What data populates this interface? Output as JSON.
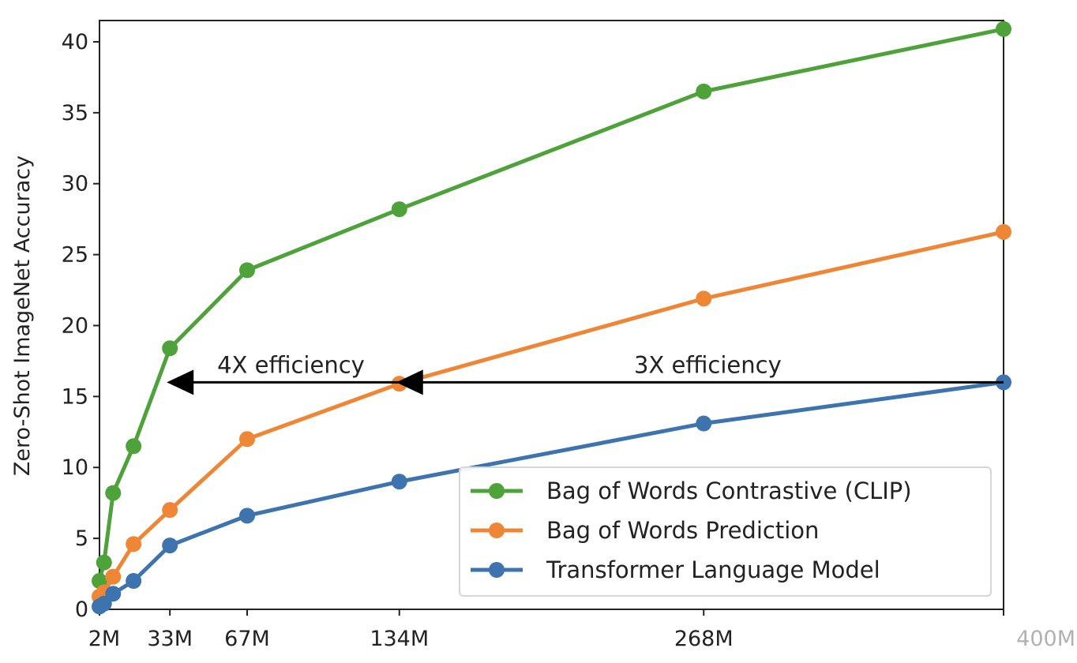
{
  "chart_data": {
    "type": "line",
    "title": "",
    "xlabel": "",
    "ylabel": "Zero-Shot ImageNet Accuracy",
    "ylim": [
      0,
      41.5
    ],
    "xlim": [
      2,
      400
    ],
    "grid": false,
    "legend_position": "lower-right",
    "x_ticks": [
      {
        "value": 2,
        "label": "2M"
      },
      {
        "value": 33,
        "label": "33M"
      },
      {
        "value": 67,
        "label": "67M"
      },
      {
        "value": 134,
        "label": "134M"
      },
      {
        "value": 268,
        "label": "268M"
      },
      {
        "value": 400,
        "label": "400M"
      }
    ],
    "y_ticks": [
      0,
      5,
      10,
      15,
      20,
      25,
      30,
      35,
      40
    ],
    "series": [
      {
        "name": "Bag of Words Contrastive (CLIP)",
        "color": "#4da23a",
        "x": [
          2,
          4,
          8,
          17,
          33,
          67,
          134,
          268,
          400
        ],
        "y": [
          2.0,
          3.3,
          8.2,
          11.5,
          18.4,
          23.9,
          28.2,
          36.5,
          40.9
        ]
      },
      {
        "name": "Bag of Words Prediction",
        "color": "#ef8636",
        "x": [
          2,
          4,
          8,
          17,
          33,
          67,
          134,
          268,
          400
        ],
        "y": [
          0.9,
          1.2,
          2.3,
          4.6,
          7.0,
          12.0,
          15.9,
          21.9,
          26.6
        ]
      },
      {
        "name": "Transformer Language Model",
        "color": "#3d73ae",
        "x": [
          2,
          4,
          8,
          17,
          33,
          67,
          134,
          268,
          400
        ],
        "y": [
          0.2,
          0.4,
          1.1,
          2.0,
          4.5,
          6.6,
          9.0,
          13.1,
          16.0
        ]
      }
    ],
    "annotations": [
      {
        "text": "4X efficiency",
        "arrow_from_x": 134,
        "arrow_to_x": 33,
        "y": 16.0
      },
      {
        "text": "3X efficiency",
        "arrow_from_x": 400,
        "arrow_to_x": 134,
        "y": 16.0
      }
    ]
  }
}
